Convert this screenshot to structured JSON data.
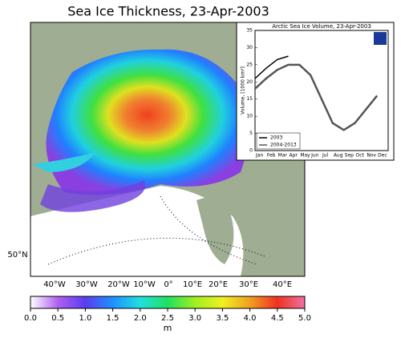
{
  "map": {
    "title": "Sea Ice Thickness, 23-Apr-2003",
    "lat_labels": [
      "50°N"
    ],
    "lon_labels": [
      "40°W",
      "30°W",
      "20°W",
      "10°W",
      "0°",
      "10°E",
      "20°E",
      "30°E",
      "40°E"
    ],
    "colorbar": {
      "label": "m",
      "lim": [
        0,
        5
      ],
      "ticks": [
        {
          "value": 0,
          "label": "0.0"
        },
        {
          "value": 0.5,
          "label": "0.5"
        },
        {
          "value": 1,
          "label": "1.0"
        },
        {
          "value": 1.5,
          "label": "1.5"
        },
        {
          "value": 2,
          "label": "2.0"
        },
        {
          "value": 2.5,
          "label": "2.5"
        },
        {
          "value": 3,
          "label": "3.0"
        },
        {
          "value": 3.5,
          "label": "3.5"
        },
        {
          "value": 4,
          "label": "4.0"
        },
        {
          "value": 4.5,
          "label": "4.5"
        },
        {
          "value": 5,
          "label": "5.0"
        }
      ],
      "colors": [
        "#ffffff",
        "#b060f0",
        "#5a3cf0",
        "#1e90ff",
        "#20e0e0",
        "#20e060",
        "#a0f020",
        "#f0f020",
        "#f0a020",
        "#f03020",
        "#f070a0"
      ]
    }
  },
  "chart_data": {
    "type": "line",
    "title": "Arctic Sea Ice Volume, 23-Apr-2003",
    "y_label": "Volume, [1000 km³]",
    "categories": [
      "Jan",
      "Feb",
      "Mar",
      "Apr",
      "May",
      "Jun",
      "Jul",
      "Aug",
      "Sep",
      "Oct",
      "Nov",
      "Dec"
    ],
    "ylim": [
      0,
      35
    ],
    "yticks": [
      0,
      5,
      10,
      15,
      20,
      25,
      30,
      35
    ],
    "series": [
      {
        "name": "2003",
        "color": "#000000",
        "values": [
          21,
          24,
          26.5,
          27.5,
          null,
          null,
          null,
          null,
          null,
          null,
          null,
          null
        ]
      },
      {
        "name": "2004-2013",
        "color": "#555555",
        "values": [
          18,
          21,
          23.5,
          25,
          25,
          22,
          15,
          8,
          6,
          8,
          12,
          16
        ]
      }
    ]
  }
}
